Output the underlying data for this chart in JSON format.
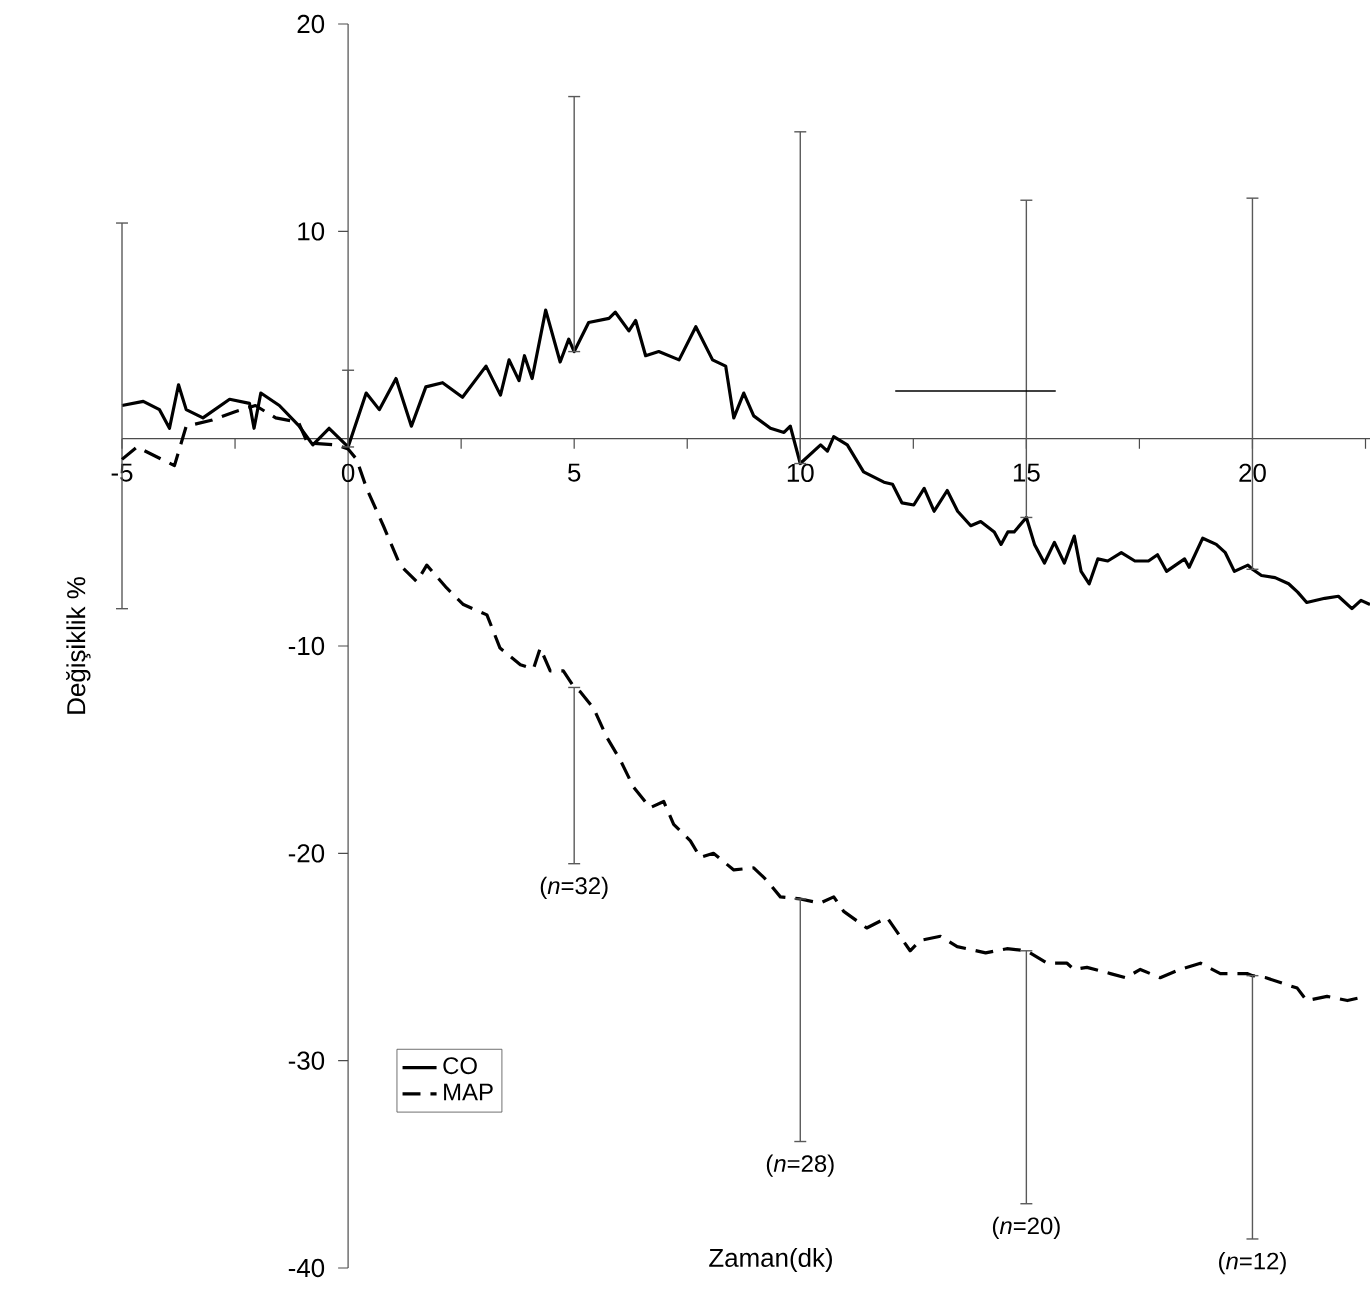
{
  "chart_data": {
    "type": "line",
    "xlabel": "Zaman(dk)",
    "ylabel": "Değişiklik %",
    "xlim": [
      -5,
      22.6
    ],
    "ylim": [
      -40,
      20
    ],
    "xticks": [
      -5,
      {
        "value": -2.5,
        "label": null
      },
      0,
      {
        "value": 2.5,
        "label": null
      },
      5,
      {
        "value": 7.5,
        "label": null
      },
      10,
      {
        "value": 12.5,
        "label": null
      },
      15,
      {
        "value": 17.5,
        "label": null
      },
      20,
      {
        "value": 22.5,
        "label": null
      }
    ],
    "yticks": [
      -40,
      -30,
      -20,
      -10,
      10,
      20
    ],
    "legend": "bottom left",
    "series": [
      {
        "name": "CO",
        "color": "#000000",
        "line_style": "solid",
        "x": [
          -5,
          -4.53,
          -4.17,
          -3.95,
          -3.75,
          -3.58,
          -3.21,
          -2.62,
          -2.18,
          -2.08,
          -1.93,
          -1.52,
          -1.08,
          -0.78,
          -0.42,
          0,
          0.4,
          0.69,
          1.06,
          1.4,
          1.72,
          2.09,
          2.53,
          3.05,
          3.37,
          3.56,
          3.78,
          3.9,
          4.07,
          4.37,
          4.69,
          4.88,
          5,
          5.32,
          5.77,
          5.91,
          6.21,
          6.36,
          6.58,
          6.87,
          7.32,
          7.69,
          8.06,
          8.35,
          8.53,
          8.75,
          8.97,
          9.34,
          9.64,
          9.78,
          10,
          10.45,
          10.6,
          10.74,
          11.04,
          11.4,
          11.85,
          12.04,
          12.25,
          12.51,
          12.74,
          12.96,
          13.25,
          13.48,
          13.77,
          13.99,
          14.29,
          14.44,
          14.59,
          14.73,
          15,
          15.18,
          15.4,
          15.62,
          15.84,
          16.06,
          16.21,
          16.39,
          16.58,
          16.8,
          17.1,
          17.4,
          17.7,
          17.9,
          18.1,
          18.5,
          18.6,
          18.9,
          19.2,
          19.4,
          19.6,
          19.9,
          20,
          20.2,
          20.5,
          20.8,
          21.0,
          21.2,
          21.6,
          21.9,
          22.2,
          22.4,
          22.6
        ],
        "values": [
          1.6,
          1.8,
          1.4,
          0.5,
          2.6,
          1.4,
          1.0,
          1.9,
          1.7,
          0.5,
          2.2,
          1.6,
          0.6,
          -0.3,
          0.5,
          -0.4,
          2.2,
          1.4,
          2.9,
          0.6,
          2.5,
          2.7,
          2.0,
          3.5,
          2.1,
          3.8,
          2.8,
          4.0,
          2.9,
          6.2,
          3.7,
          4.8,
          4.2,
          5.6,
          5.8,
          6.1,
          5.2,
          5.7,
          4.0,
          4.2,
          3.8,
          5.4,
          3.8,
          3.5,
          1.0,
          2.2,
          1.1,
          0.5,
          0.3,
          0.6,
          -1.2,
          -0.3,
          -0.6,
          0.1,
          -0.3,
          -1.6,
          -2.1,
          -2.2,
          -3.1,
          -3.2,
          -2.4,
          -3.5,
          -2.5,
          -3.5,
          -4.2,
          -4.0,
          -4.5,
          -5.1,
          -4.5,
          -4.5,
          -3.8,
          -5.1,
          -6.0,
          -5.0,
          -6.0,
          -4.7,
          -6.4,
          -7.0,
          -5.8,
          -5.9,
          -5.5,
          -5.9,
          -5.9,
          -5.6,
          -6.4,
          -5.8,
          -6.2,
          -4.8,
          -5.1,
          -5.5,
          -6.4,
          -6.1,
          -6.3,
          -6.6,
          -6.7,
          -7.0,
          -7.4,
          -7.9,
          -7.7,
          -7.6,
          -8.2,
          -7.8,
          -8.0
        ],
        "errors": [
          [
            -8.2,
            10.4
          ],
          null,
          null,
          null,
          null,
          null,
          null,
          null,
          null,
          null,
          null,
          null,
          null,
          null,
          null,
          [
            -0.4,
            3.3
          ],
          null,
          null,
          null,
          null,
          null,
          null,
          null,
          null,
          null,
          null,
          null,
          null,
          null,
          null,
          null,
          null,
          [
            4.2,
            16.5
          ],
          null,
          null,
          null,
          null,
          null,
          null,
          null,
          null,
          null,
          null,
          null,
          null,
          null,
          null,
          null,
          null,
          null,
          [
            -1.2,
            14.8
          ],
          null,
          null,
          null,
          null,
          null,
          null,
          null,
          null,
          null,
          null,
          null,
          null,
          null,
          null,
          null,
          null,
          null,
          null,
          null,
          [
            -3.8,
            11.5
          ],
          null,
          null,
          null,
          null,
          null,
          null,
          null,
          null,
          null,
          null,
          null,
          null,
          null,
          null,
          null,
          null,
          null,
          null,
          null,
          null,
          null,
          [
            -6.3,
            11.6
          ],
          null,
          null,
          null,
          null,
          null,
          null,
          null,
          null,
          null,
          null
        ]
      },
      {
        "name": "MAP",
        "color": "#000000",
        "line_style": "dashed",
        "x": [
          -5,
          -4.67,
          -3.84,
          -3.58,
          -3.0,
          -2.5,
          -2.05,
          -1.6,
          -1.1,
          -0.9,
          -0.25,
          0,
          0.19,
          0.41,
          0.78,
          1.15,
          1.52,
          1.74,
          2.18,
          2.55,
          3.07,
          3.36,
          3.81,
          4.1,
          4.25,
          4.47,
          4.76,
          5,
          5.13,
          5.43,
          5.72,
          6.02,
          6.31,
          6.68,
          6.98,
          7.2,
          7.57,
          7.79,
          8.08,
          8.53,
          8.97,
          9.26,
          9.56,
          10,
          10.44,
          10.74,
          10.96,
          11.47,
          11.92,
          12.43,
          12.65,
          13.1,
          13.47,
          14.1,
          14.57,
          15,
          15.46,
          15.9,
          16.05,
          16.34,
          16.86,
          17.2,
          17.52,
          17.96,
          18.4,
          18.85,
          19.29,
          19.88,
          20,
          20.3,
          20.99,
          21.2,
          21.65,
          22.1,
          22.5
        ],
        "values": [
          -1.0,
          -0.4,
          -1.3,
          0.6,
          0.9,
          1.3,
          1.6,
          1.0,
          0.8,
          -0.2,
          -0.3,
          -0.5,
          -1.0,
          -2.4,
          -4.2,
          -6.1,
          -6.9,
          -6.1,
          -7.2,
          -8.0,
          -8.5,
          -10.1,
          -10.9,
          -11.1,
          -10.1,
          -11.2,
          -11.2,
          -12.0,
          -12.2,
          -13.0,
          -14.4,
          -15.5,
          -16.8,
          -17.8,
          -17.5,
          -18.6,
          -19.4,
          -20.2,
          -20.0,
          -20.8,
          -20.7,
          -21.3,
          -22.1,
          -22.2,
          -22.4,
          -22.1,
          -22.8,
          -23.6,
          -23.1,
          -24.7,
          -24.2,
          -24.0,
          -24.5,
          -24.8,
          -24.6,
          -24.7,
          -25.3,
          -25.3,
          -25.6,
          -25.5,
          -25.8,
          -26.0,
          -25.6,
          -26.0,
          -25.6,
          -25.3,
          -25.8,
          -25.8,
          -25.9,
          -26.0,
          -26.5,
          -27.1,
          -26.9,
          -27.1,
          -26.9
        ],
        "errors": [
          null,
          null,
          null,
          null,
          null,
          null,
          null,
          null,
          null,
          null,
          null,
          null,
          null,
          null,
          null,
          null,
          null,
          null,
          null,
          null,
          null,
          null,
          null,
          null,
          null,
          null,
          null,
          [
            -20.5,
            -12.0
          ],
          null,
          null,
          null,
          null,
          null,
          null,
          null,
          null,
          null,
          null,
          null,
          null,
          null,
          null,
          null,
          [
            -33.9,
            -22.2
          ],
          null,
          null,
          null,
          null,
          null,
          null,
          null,
          null,
          null,
          null,
          null,
          [
            -36.9,
            -24.7
          ],
          null,
          null,
          null,
          null,
          null,
          null,
          null,
          null,
          null,
          null,
          null,
          null,
          [
            -38.6,
            -25.9
          ],
          null,
          null,
          null,
          null,
          null,
          null
        ]
      },
      {
        "type": "line",
        "color": "#000000",
        "line_style": "solid",
        "x": [
          12.1,
          15.65
        ],
        "values": [
          2.3,
          2.3
        ]
      }
    ],
    "annotations": [
      {
        "text": "(*n*=32)",
        "x": 5,
        "y": -20.5
      },
      {
        "text": "(*n*=28)",
        "x": 10,
        "y": -33.9
      },
      {
        "text": "(*n*=20)",
        "x": 15,
        "y": -36.9
      },
      {
        "text": "(*n*=12)",
        "x": 20,
        "y": -38.6
      }
    ]
  }
}
